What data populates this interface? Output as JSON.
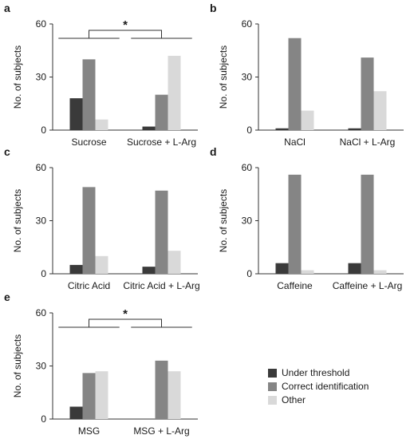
{
  "chart_data": [
    {
      "panel_letter": "a",
      "type": "bar",
      "ylabel": "No. of subjects",
      "ylim": [
        0,
        60
      ],
      "yticks": [
        0,
        30,
        60
      ],
      "categories": [
        "Sucrose",
        "Sucrose + L-Arg"
      ],
      "series": [
        {
          "name": "Under threshold",
          "values": [
            18,
            2
          ]
        },
        {
          "name": "Correct identification",
          "values": [
            40,
            20
          ]
        },
        {
          "name": "Other",
          "values": [
            6,
            42
          ]
        }
      ],
      "significance": "*"
    },
    {
      "panel_letter": "b",
      "type": "bar",
      "ylabel": "No. of subjects",
      "ylim": [
        0,
        60
      ],
      "yticks": [
        0,
        30,
        60
      ],
      "categories": [
        "NaCl",
        "NaCl + L-Arg"
      ],
      "series": [
        {
          "name": "Under threshold",
          "values": [
            1,
            1
          ]
        },
        {
          "name": "Correct identification",
          "values": [
            52,
            41
          ]
        },
        {
          "name": "Other",
          "values": [
            11,
            22
          ]
        }
      ],
      "significance": ""
    },
    {
      "panel_letter": "c",
      "type": "bar",
      "ylabel": "No. of subjects",
      "ylim": [
        0,
        60
      ],
      "yticks": [
        0,
        30,
        60
      ],
      "categories": [
        "Citric Acid",
        "Citric Acid + L-Arg"
      ],
      "series": [
        {
          "name": "Under threshold",
          "values": [
            5,
            4
          ]
        },
        {
          "name": "Correct identification",
          "values": [
            49,
            47
          ]
        },
        {
          "name": "Other",
          "values": [
            10,
            13
          ]
        }
      ],
      "significance": ""
    },
    {
      "panel_letter": "d",
      "type": "bar",
      "ylabel": "No. of subjects",
      "ylim": [
        0,
        60
      ],
      "yticks": [
        0,
        30,
        60
      ],
      "categories": [
        "Caffeine",
        "Caffeine + L-Arg"
      ],
      "series": [
        {
          "name": "Under threshold",
          "values": [
            6,
            6
          ]
        },
        {
          "name": "Correct identification",
          "values": [
            56,
            56
          ]
        },
        {
          "name": "Other",
          "values": [
            2,
            2
          ]
        }
      ],
      "significance": ""
    },
    {
      "panel_letter": "e",
      "type": "bar",
      "ylabel": "No. of subjects",
      "ylim": [
        0,
        60
      ],
      "yticks": [
        0,
        30,
        60
      ],
      "categories": [
        "MSG",
        "MSG + L-Arg"
      ],
      "series": [
        {
          "name": "Under threshold",
          "values": [
            7,
            0
          ]
        },
        {
          "name": "Correct identification",
          "values": [
            26,
            33
          ]
        },
        {
          "name": "Other",
          "values": [
            27,
            27
          ]
        }
      ],
      "significance": "*"
    }
  ],
  "legend": {
    "placement": "bottom-right",
    "items": [
      {
        "label": "Under threshold",
        "color": "#3a3a3a"
      },
      {
        "label": "Correct identification",
        "color": "#858585"
      },
      {
        "label": "Other",
        "color": "#d9d9d9"
      }
    ]
  },
  "colors": {
    "axis": "#333333",
    "text": "#1a1a1a"
  }
}
